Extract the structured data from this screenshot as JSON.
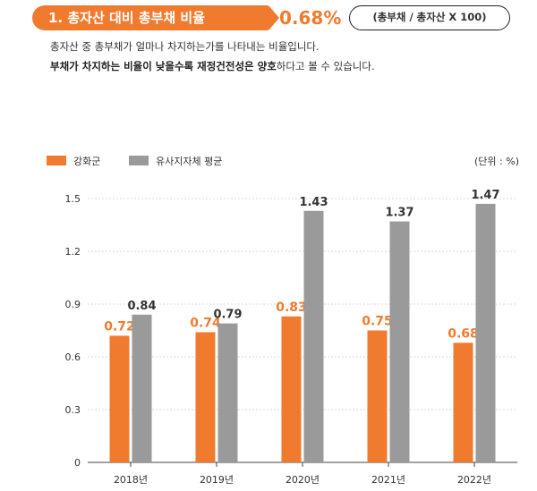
{
  "header": {
    "title": "1. 총자산 대비 총부채 비율",
    "value": "0.68%",
    "formula": "(총부채 / 총자산 X 100)"
  },
  "description": {
    "line1": "총자산 중 총부채가 얼마나 차지하는가를 나타내는 비율입니다.",
    "line2_bold": "부채가 차지하는 비율이 낮을수록 재정건전성은 양호",
    "line2_rest": "하다고 볼 수 있습니다."
  },
  "colors": {
    "accent": "#f07b2e",
    "gray": "#9a9a9a"
  },
  "chart_data": {
    "type": "bar",
    "categories": [
      "2018년",
      "2019년",
      "2020년",
      "2021년",
      "2022년"
    ],
    "series": [
      {
        "name": "강화군",
        "values": [
          0.72,
          0.74,
          0.83,
          0.75,
          0.68
        ],
        "labels": [
          "0.72",
          "0.74",
          "0.83",
          "0.75",
          "0.68"
        ]
      },
      {
        "name": "유사지자체 평균",
        "values": [
          0.84,
          0.79,
          1.43,
          1.37,
          1.47
        ],
        "labels": [
          "0.84",
          "0.79",
          "1.43",
          "1.37",
          "1.47"
        ]
      }
    ],
    "unit_label": "(단위 : %)",
    "yticks": [
      "0",
      "0.3",
      "0.6",
      "0.9",
      "1.2",
      "1.5"
    ],
    "ytick_values": [
      0,
      0.3,
      0.6,
      0.9,
      1.2,
      1.5
    ],
    "ylim": [
      0,
      1.5
    ],
    "grid": true,
    "legend": "top-left"
  }
}
